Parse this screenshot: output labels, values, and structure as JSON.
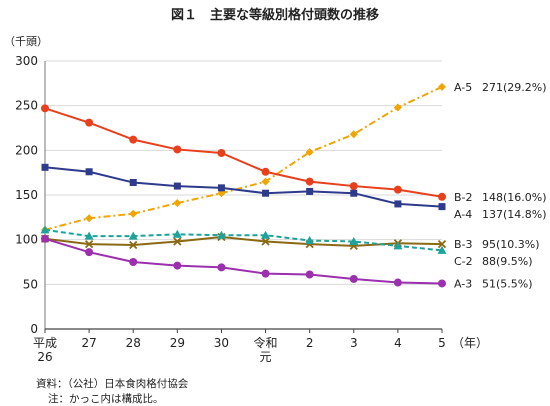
{
  "chart_data": {
    "type": "line",
    "title": "図１　主要な等級別格付頭数の推移",
    "ylabel": "（千頭）",
    "xunit": "（年）",
    "ylim": [
      0,
      300
    ],
    "yticks": [
      0,
      50,
      100,
      150,
      200,
      250,
      300
    ],
    "categories": [
      "平成\n26",
      "27",
      "28",
      "29",
      "30",
      "令和\n元",
      "2",
      "3",
      "4",
      "5"
    ],
    "grid": "horizontal",
    "legend_placement": "right, at line ends",
    "series": [
      {
        "name": "A-5",
        "end_label": "271(29.2%)",
        "color": "#F0A500",
        "dash": "dashdot",
        "marker": "diamond",
        "values": [
          111,
          124,
          129,
          141,
          152,
          165,
          198,
          218,
          248,
          271
        ]
      },
      {
        "name": "B-2",
        "end_label": "148(16.0%)",
        "color": "#E8401C",
        "dash": "solid",
        "marker": "circle",
        "values": [
          247,
          231,
          212,
          201,
          197,
          176,
          165,
          160,
          156,
          148
        ]
      },
      {
        "name": "A-4",
        "end_label": "137(14.8%)",
        "color": "#2E3A8C",
        "dash": "solid",
        "marker": "square",
        "values": [
          181,
          176,
          164,
          160,
          158,
          152,
          154,
          152,
          140,
          137
        ]
      },
      {
        "name": "B-3",
        "end_label": "95(10.3%)",
        "color": "#8B6914",
        "dash": "solid",
        "marker": "cross",
        "values": [
          101,
          95,
          94,
          98,
          103,
          98,
          95,
          93,
          96,
          95
        ]
      },
      {
        "name": "C-2",
        "end_label": "88(9.5%)",
        "color": "#1BA39C",
        "dash": "dashed",
        "marker": "triangle",
        "values": [
          111,
          104,
          104,
          106,
          105,
          105,
          99,
          98,
          93,
          88
        ]
      },
      {
        "name": "A-3",
        "end_label": "51(5.5%)",
        "color": "#9B2FAE",
        "dash": "solid",
        "marker": "circle",
        "values": [
          101,
          86,
          75,
          71,
          69,
          62,
          61,
          56,
          52,
          51
        ]
      }
    ]
  },
  "notes": {
    "source": "資料：（公社）日本食肉格付協会",
    "caption": "注：かっこ内は構成比。"
  }
}
